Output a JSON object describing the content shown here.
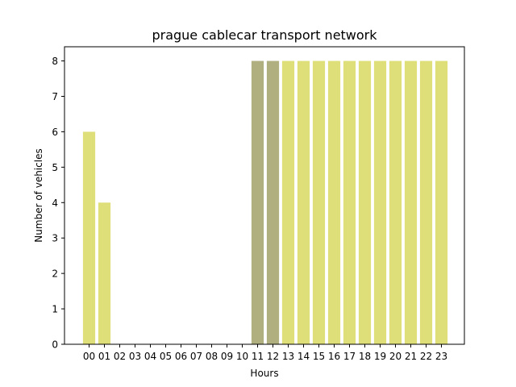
{
  "chart_data": {
    "type": "bar",
    "title": "prague cablecar transport network",
    "xlabel": "Hours",
    "ylabel": "Number of vehicles",
    "categories": [
      "00",
      "01",
      "02",
      "03",
      "04",
      "05",
      "06",
      "07",
      "08",
      "09",
      "10",
      "11",
      "12",
      "13",
      "14",
      "15",
      "16",
      "17",
      "18",
      "19",
      "20",
      "21",
      "22",
      "23"
    ],
    "values": [
      6,
      4,
      0,
      0,
      0,
      0,
      0,
      0,
      0,
      0,
      0,
      8,
      8,
      8,
      8,
      8,
      8,
      8,
      8,
      8,
      8,
      8,
      8,
      8
    ],
    "ylim": [
      0,
      8.4
    ],
    "yticks": [
      0,
      1,
      2,
      3,
      4,
      5,
      6,
      7,
      8
    ],
    "grid": false,
    "colors": {
      "default": "#dfdf7a",
      "highlight": "#afaf7f",
      "highlight_categories": [
        "11",
        "12"
      ]
    }
  }
}
